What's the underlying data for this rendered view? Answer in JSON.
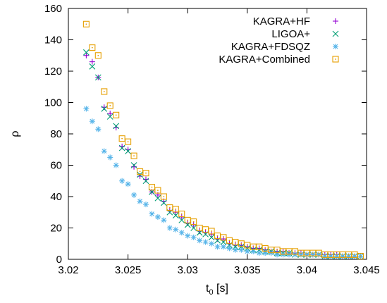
{
  "chart_data": {
    "type": "scatter",
    "xlabel_main": "t",
    "xlabel_sub": "0",
    "xlabel_unit": " [s]",
    "ylabel": "ρ",
    "xlim": [
      3.02,
      3.045
    ],
    "ylim": [
      0,
      160
    ],
    "xticks": [
      3.02,
      3.025,
      3.03,
      3.035,
      3.04,
      3.045
    ],
    "xtick_labels": [
      "3.02",
      "3.025",
      "3.03",
      "3.035",
      "3.04",
      "3.045"
    ],
    "yticks": [
      0,
      20,
      40,
      60,
      80,
      100,
      120,
      140,
      160
    ],
    "ytick_labels": [
      "0",
      "20",
      "40",
      "60",
      "80",
      "100",
      "120",
      "140",
      "160"
    ],
    "grid": false,
    "legend_position": "top-right",
    "series": [
      {
        "name": "KAGRA+HF",
        "marker": "plus",
        "color": "#9400d3",
        "x": [
          3.0215,
          3.022,
          3.0225,
          3.023,
          3.0235,
          3.024,
          3.0245,
          3.025,
          3.0255,
          3.026,
          3.0265,
          3.027,
          3.0275,
          3.028,
          3.0285,
          3.029,
          3.0295,
          3.03,
          3.0305,
          3.031,
          3.0315,
          3.032,
          3.0325,
          3.033,
          3.0335,
          3.034,
          3.0345,
          3.035,
          3.0355,
          3.036,
          3.0365,
          3.037,
          3.0375,
          3.038,
          3.0385,
          3.039,
          3.0395,
          3.04,
          3.0405,
          3.041,
          3.0415,
          3.042,
          3.0425,
          3.043,
          3.0435,
          3.044,
          3.0445
        ],
        "y": [
          130,
          126,
          116,
          97,
          93,
          84,
          72,
          70,
          59,
          53,
          51,
          43,
          41,
          37,
          31,
          30,
          27,
          23,
          22,
          18,
          17,
          16,
          13,
          13,
          10,
          9,
          9,
          8,
          7,
          7,
          6,
          5,
          5,
          5,
          4,
          4,
          4,
          3,
          3,
          3,
          3,
          3,
          3,
          2,
          2,
          2,
          2
        ]
      },
      {
        "name": "LIGOA+",
        "marker": "cross",
        "color": "#009e73",
        "x": [
          3.0215,
          3.022,
          3.0225,
          3.023,
          3.0235,
          3.024,
          3.0245,
          3.025,
          3.0255,
          3.026,
          3.0265,
          3.027,
          3.0275,
          3.028,
          3.0285,
          3.029,
          3.0295,
          3.03,
          3.0305,
          3.031,
          3.0315,
          3.032,
          3.0325,
          3.033,
          3.0335,
          3.034,
          3.0345,
          3.035,
          3.0355,
          3.036,
          3.0365,
          3.037,
          3.0375,
          3.038,
          3.0385,
          3.039,
          3.0395,
          3.04,
          3.0405,
          3.041,
          3.0415,
          3.042,
          3.0425,
          3.043,
          3.0435,
          3.044,
          3.0445
        ],
        "y": [
          132,
          123,
          116,
          96,
          91,
          85,
          71,
          69,
          60,
          54,
          50,
          43,
          39,
          36,
          30,
          28,
          25,
          22,
          20,
          17,
          16,
          14,
          12,
          11,
          9,
          8,
          8,
          7,
          6,
          6,
          5,
          5,
          4,
          4,
          4,
          3,
          3,
          3,
          3,
          3,
          2,
          2,
          2,
          2,
          2,
          2,
          2
        ]
      },
      {
        "name": "KAGRA+FDSQZ",
        "marker": "star",
        "color": "#56b4e9",
        "x": [
          3.0215,
          3.022,
          3.0225,
          3.023,
          3.0235,
          3.024,
          3.0245,
          3.025,
          3.0255,
          3.026,
          3.0265,
          3.027,
          3.0275,
          3.028,
          3.0285,
          3.029,
          3.0295,
          3.03,
          3.0305,
          3.031,
          3.0315,
          3.032,
          3.0325,
          3.033,
          3.0335,
          3.034,
          3.0345,
          3.035,
          3.0355,
          3.036,
          3.0365,
          3.037,
          3.0375,
          3.038,
          3.0385,
          3.039,
          3.0395,
          3.04,
          3.0405,
          3.041,
          3.0415,
          3.042,
          3.0425,
          3.043,
          3.0435,
          3.044,
          3.0445
        ],
        "y": [
          96,
          88,
          83,
          69,
          65,
          60,
          50,
          48,
          41,
          37,
          35,
          29,
          27,
          25,
          20,
          19,
          17,
          15,
          14,
          12,
          11,
          10,
          8,
          8,
          7,
          6,
          6,
          5,
          5,
          4,
          4,
          4,
          3,
          3,
          3,
          3,
          3,
          3,
          3,
          3,
          2,
          2,
          2,
          2,
          2,
          2,
          2
        ]
      },
      {
        "name": "KAGRA+Combined",
        "marker": "dotted-square",
        "color": "#e69f00",
        "x": [
          3.0215,
          3.022,
          3.0225,
          3.023,
          3.0235,
          3.024,
          3.0245,
          3.025,
          3.0255,
          3.026,
          3.0265,
          3.027,
          3.0275,
          3.028,
          3.0285,
          3.029,
          3.0295,
          3.03,
          3.0305,
          3.031,
          3.0315,
          3.032,
          3.0325,
          3.033,
          3.0335,
          3.034,
          3.0345,
          3.035,
          3.0355,
          3.036,
          3.0365,
          3.037,
          3.0375,
          3.038,
          3.0385,
          3.039,
          3.0395,
          3.04,
          3.0405,
          3.041,
          3.0415,
          3.042,
          3.0425,
          3.043,
          3.0435,
          3.044,
          3.0445
        ],
        "y": [
          150,
          135,
          130,
          107,
          98,
          92,
          77,
          75,
          66,
          56,
          55,
          46,
          44,
          40,
          33,
          32,
          29,
          25,
          24,
          20,
          19,
          18,
          15,
          14,
          12,
          11,
          10,
          9,
          8,
          8,
          7,
          6,
          6,
          5,
          5,
          5,
          4,
          4,
          4,
          4,
          3,
          3,
          3,
          3,
          3,
          3,
          2
        ]
      }
    ]
  }
}
